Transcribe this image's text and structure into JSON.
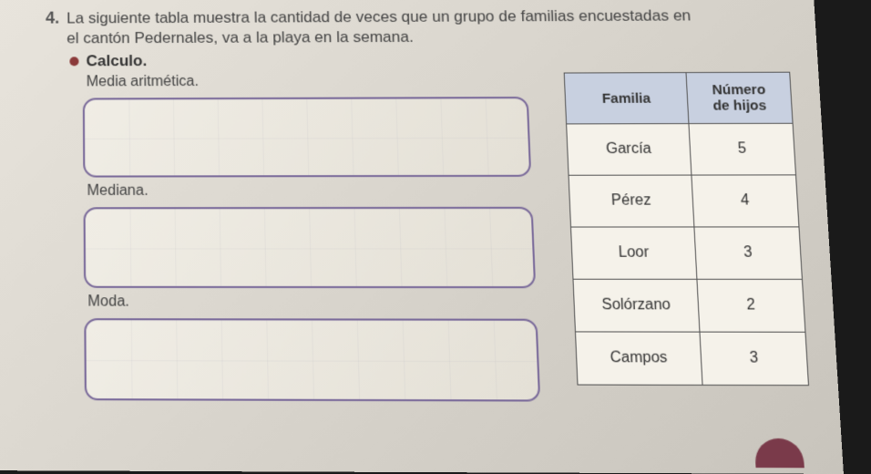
{
  "question": {
    "number": "4.",
    "text_line1": "La siguiente tabla muestra la cantidad de veces que un grupo de familias encuestadas en",
    "text_line2": "el cantón Pedernales, va a la playa en la semana.",
    "sub": "Calculo."
  },
  "stats": {
    "mean_label": "Media aritmética.",
    "median_label": "Mediana.",
    "mode_label": "Moda."
  },
  "table": {
    "header_family": "Familia",
    "header_count": "Número de hijos",
    "rows": [
      {
        "family": "García",
        "count": "5"
      },
      {
        "family": "Pérez",
        "count": "4"
      },
      {
        "family": "Loor",
        "count": "3"
      },
      {
        "family": "Solórzano",
        "count": "2"
      },
      {
        "family": "Campos",
        "count": "3"
      }
    ]
  }
}
